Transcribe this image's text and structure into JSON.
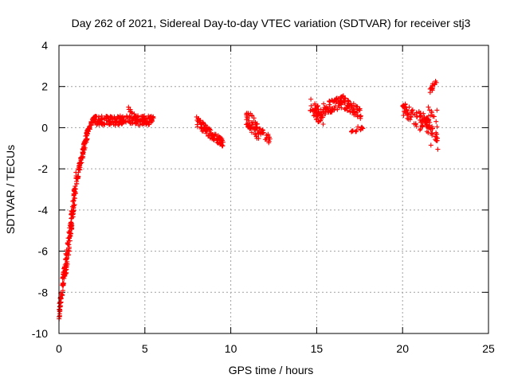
{
  "chart_data": {
    "type": "scatter",
    "title": "Day 262 of 2021, Sidereal Day-to-day VTEC variation (SDTVAR) for receiver stj3",
    "xlabel": "GPS time / hours",
    "ylabel": "SDTVAR / TECUs",
    "xlim": [
      0,
      25
    ],
    "ylim": [
      -10,
      4
    ],
    "xticks": [
      0,
      5,
      10,
      15,
      20,
      25
    ],
    "yticks": [
      -10,
      -8,
      -6,
      -4,
      -2,
      0,
      2,
      4
    ],
    "grid": true,
    "marker": "+",
    "color": "#ff0000",
    "segments": [
      {
        "x_start": 0.0,
        "x_end": 0.4,
        "y_start": -9.1,
        "y_end": -6.5,
        "y_spread": 0.9,
        "count": 70
      },
      {
        "x_start": 0.4,
        "x_end": 1.0,
        "y_start": -6.8,
        "y_end": -2.6,
        "y_spread": 1.1,
        "count": 110
      },
      {
        "x_start": 1.0,
        "x_end": 1.7,
        "y_start": -2.6,
        "y_end": -0.1,
        "y_spread": 0.5,
        "count": 90
      },
      {
        "x_start": 1.7,
        "x_end": 2.0,
        "y_start": -0.1,
        "y_end": 0.35,
        "y_spread": 0.3,
        "count": 20
      },
      {
        "x_start": 2.0,
        "x_end": 5.5,
        "y_start": 0.35,
        "y_end": 0.35,
        "y_spread": 0.45,
        "count": 200
      },
      {
        "x_start": 4.0,
        "x_end": 4.6,
        "y_start": 0.9,
        "y_end": 0.5,
        "y_spread": 0.2,
        "count": 12
      },
      {
        "x_start": 8.0,
        "x_end": 8.8,
        "y_start": 0.3,
        "y_end": -0.3,
        "y_spread": 0.5,
        "count": 45
      },
      {
        "x_start": 8.8,
        "x_end": 9.6,
        "y_start": -0.3,
        "y_end": -0.75,
        "y_spread": 0.4,
        "count": 45
      },
      {
        "x_start": 10.9,
        "x_end": 11.7,
        "y_start": 0.6,
        "y_end": -0.4,
        "y_spread": 0.9,
        "count": 55
      },
      {
        "x_start": 11.7,
        "x_end": 12.3,
        "y_start": -0.2,
        "y_end": -0.6,
        "y_spread": 0.4,
        "count": 20
      },
      {
        "x_start": 14.6,
        "x_end": 15.4,
        "y_start": 1.1,
        "y_end": 0.4,
        "y_spread": 0.8,
        "count": 50
      },
      {
        "x_start": 15.4,
        "x_end": 16.6,
        "y_start": 0.9,
        "y_end": 1.3,
        "y_spread": 0.6,
        "count": 75
      },
      {
        "x_start": 16.6,
        "x_end": 17.6,
        "y_start": 1.2,
        "y_end": 0.7,
        "y_spread": 0.6,
        "count": 55
      },
      {
        "x_start": 17.0,
        "x_end": 17.7,
        "y_start": -0.25,
        "y_end": 0.0,
        "y_spread": 0.15,
        "count": 14
      },
      {
        "x_start": 20.0,
        "x_end": 20.8,
        "y_start": 0.9,
        "y_end": 0.4,
        "y_spread": 0.7,
        "count": 35
      },
      {
        "x_start": 20.8,
        "x_end": 21.6,
        "y_start": 0.4,
        "y_end": 0.1,
        "y_spread": 0.9,
        "count": 45
      },
      {
        "x_start": 21.6,
        "x_end": 22.0,
        "y_start": 1.8,
        "y_end": 2.3,
        "y_spread": 0.3,
        "count": 16
      },
      {
        "x_start": 21.5,
        "x_end": 22.1,
        "y_start": 0.5,
        "y_end": -0.4,
        "y_spread": 1.2,
        "count": 30
      }
    ],
    "points": [
      [
        22.05,
        -1.05
      ],
      [
        21.65,
        -0.85
      ],
      [
        22.0,
        0.85
      ],
      [
        21.7,
        -0.3
      ],
      [
        4.05,
        1.0
      ],
      [
        17.4,
        0.05
      ],
      [
        12.2,
        -0.65
      ]
    ]
  }
}
